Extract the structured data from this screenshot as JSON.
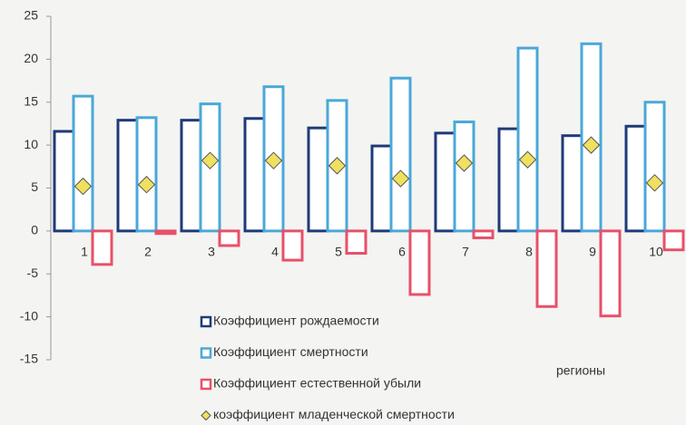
{
  "chart_data": {
    "type": "bar",
    "x_label": "регионы",
    "categories": [
      "1",
      "2",
      "3",
      "4",
      "5",
      "6",
      "7",
      "8",
      "9",
      "10"
    ],
    "series": [
      {
        "name": "Коэффициент рождаемости",
        "color": "#1f3a7a",
        "values": [
          11.6,
          12.9,
          12.9,
          13.1,
          12.0,
          9.9,
          11.4,
          11.9,
          11.1,
          12.2
        ]
      },
      {
        "name": "Коэффициент смертности",
        "color": "#4aa8d8",
        "values": [
          15.7,
          13.2,
          14.8,
          16.8,
          15.2,
          17.8,
          12.7,
          21.3,
          21.8,
          15.0
        ]
      },
      {
        "name": "Коэффициент естественной убыли",
        "color": "#e8506a",
        "values": [
          -3.9,
          -0.3,
          -1.7,
          -3.4,
          -2.6,
          -7.4,
          -0.8,
          -8.8,
          -9.9,
          -2.2
        ]
      },
      {
        "name": "коэффициент младенческой смертности",
        "color": "#f0e060",
        "marker": "diamond",
        "values": [
          5.2,
          5.4,
          8.2,
          8.2,
          7.6,
          6.1,
          7.9,
          8.3,
          10.0,
          5.6
        ]
      }
    ],
    "ylim": [
      -15,
      25
    ],
    "yticks": [
      -15,
      -10,
      -5,
      0,
      5,
      10,
      15,
      20,
      25
    ],
    "grid": false
  }
}
